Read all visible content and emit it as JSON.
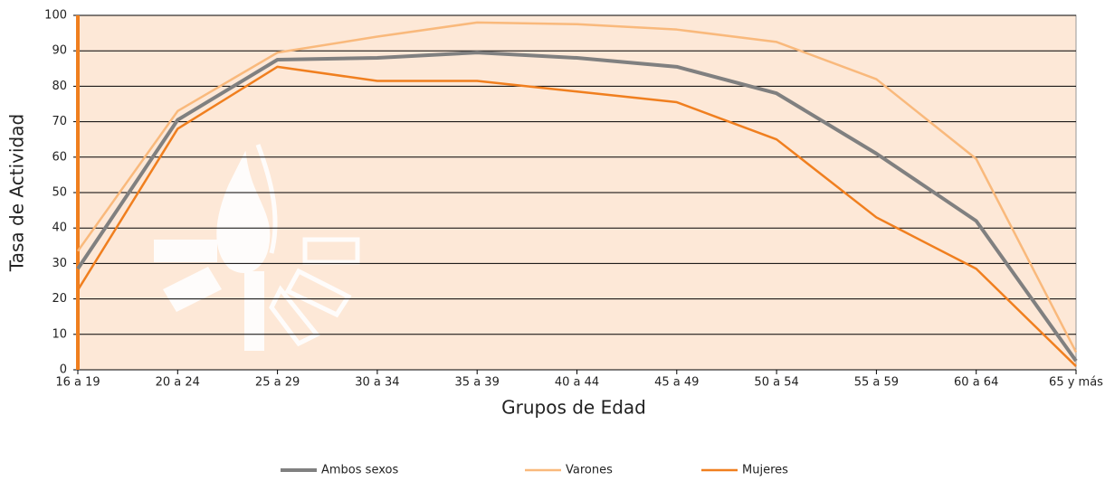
{
  "chart_data": {
    "type": "line",
    "x_label": "Grupos de Edad",
    "y_label": "Tasa de Actividad",
    "categories": [
      "16 a 19",
      "20 a 24",
      "25 a 29",
      "30 a 34",
      "35 a 39",
      "40 a 44",
      "45 a 49",
      "50 a 54",
      "55 a 59",
      "60 a 64",
      "65 y más"
    ],
    "series": [
      {
        "name": "Ambos sexos",
        "color": "#808080",
        "values": [
          28.5,
          70.5,
          87.5,
          88,
          89.5,
          88,
          85.5,
          78,
          61,
          42,
          2.5
        ]
      },
      {
        "name": "Varones",
        "color": "#f9b97c",
        "values": [
          33.5,
          73,
          89.5,
          94,
          98,
          97.5,
          96,
          92.5,
          82,
          59.5,
          5
        ]
      },
      {
        "name": "Mujeres",
        "color": "#f07f1f",
        "values": [
          22.5,
          68,
          85.5,
          81.5,
          81.5,
          78.5,
          75.5,
          65,
          43,
          28.5,
          1
        ]
      }
    ],
    "ylim": [
      0,
      100
    ],
    "yticks": [
      0,
      10,
      20,
      30,
      40,
      50,
      60,
      70,
      80,
      90,
      100
    ],
    "grid": true
  }
}
